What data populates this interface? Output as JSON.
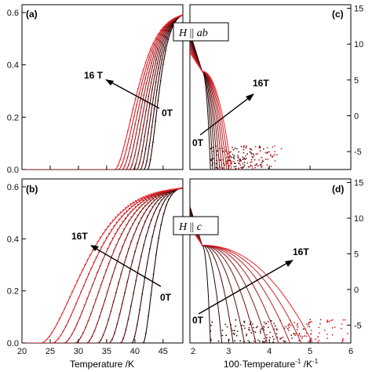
{
  "chart_data": [
    {
      "panel": "(a)",
      "type": "line",
      "xlim": [
        20,
        48.5
      ],
      "ylim": [
        0,
        0.63
      ],
      "yticks": [
        0.0,
        0.2,
        0.4,
        0.6
      ],
      "ytick_labels": [
        "0.0",
        "0.2",
        "0.4",
        "0.6"
      ],
      "grid": false,
      "series_count": 10,
      "field_low_label": "0T",
      "field_high_label": "16 T",
      "onset_T": {
        "0T": 42.3,
        "16T": 36.5
      },
      "max_y": 0.6
    },
    {
      "panel": "(b)",
      "type": "line",
      "xlim": [
        20,
        48.5
      ],
      "ylim": [
        0,
        0.63
      ],
      "xticks": [
        20,
        25,
        30,
        35,
        40,
        45
      ],
      "xtick_labels": [
        "20",
        "25",
        "30",
        "35",
        "40",
        "45"
      ],
      "yticks": [
        0.0,
        0.2,
        0.4,
        0.6
      ],
      "ytick_labels": [
        "0.0",
        "0.2",
        "0.4",
        "0.6"
      ],
      "xlabel": "Temperature /K",
      "grid": false,
      "series_count": 10,
      "field_low_label": "0T",
      "field_high_label": "16T",
      "onset_T": {
        "0T": 41.5,
        "16T": 23.5
      },
      "max_y": 0.6
    },
    {
      "panel": "(c)",
      "type": "scatter",
      "xlim": [
        2.05,
        6.0
      ],
      "ylim": [
        -7.5,
        15.5
      ],
      "yticks": [
        -5,
        0,
        5,
        10,
        15
      ],
      "ytick_labels": [
        "-5",
        "0",
        "5",
        "10",
        "15"
      ],
      "y_axis_side": "right",
      "grid": false,
      "series_count": 10,
      "field_low_label": "0T",
      "field_high_label": "16T",
      "annotation": "H || ab",
      "drop_x": {
        "0T": 2.55,
        "16T": 3.05
      }
    },
    {
      "panel": "(d)",
      "type": "scatter",
      "xlim": [
        2.05,
        6.0
      ],
      "ylim": [
        -7.5,
        15.5
      ],
      "xticks": [
        2,
        3,
        4,
        5,
        6
      ],
      "xtick_labels": [
        "2",
        "3",
        "4",
        "5",
        "6"
      ],
      "yticks": [
        -5,
        0,
        5,
        10,
        15
      ],
      "ytick_labels": [
        "-5",
        "0",
        "5",
        "10",
        "15"
      ],
      "xlabel": "100·Temperature⁻¹ /K⁻¹",
      "y_axis_side": "right",
      "grid": false,
      "series_count": 10,
      "field_low_label": "0T",
      "field_high_label": "16T",
      "annotation": "H || c",
      "drop_x": {
        "0T": 2.55,
        "16T": 5.0
      }
    }
  ],
  "colors": {
    "low_field": "#1a0000",
    "high_field": "#e8252a",
    "axis": "#000000"
  },
  "text": {
    "a": "(a)",
    "b": "(b)",
    "c": "(c)",
    "d": "(d)",
    "a_high": "16 T",
    "a_low": "0T",
    "b_high": "16T",
    "b_low": "0T",
    "c_high": "16T",
    "c_low": "0T",
    "d_high": "16T",
    "d_low": "0T",
    "h_ab_H": "H",
    "h_ab_sym": " || ",
    "h_ab_dir": "ab",
    "h_c_H": "H",
    "h_c_sym": " || ",
    "h_c_dir": "c",
    "xlabel_left": "Temperature /K",
    "xlabel_right_pre": "100·Temperature",
    "xlabel_right_sup": "-1",
    "xlabel_right_mid": " /K",
    "xlabel_right_sup2": "-1"
  }
}
